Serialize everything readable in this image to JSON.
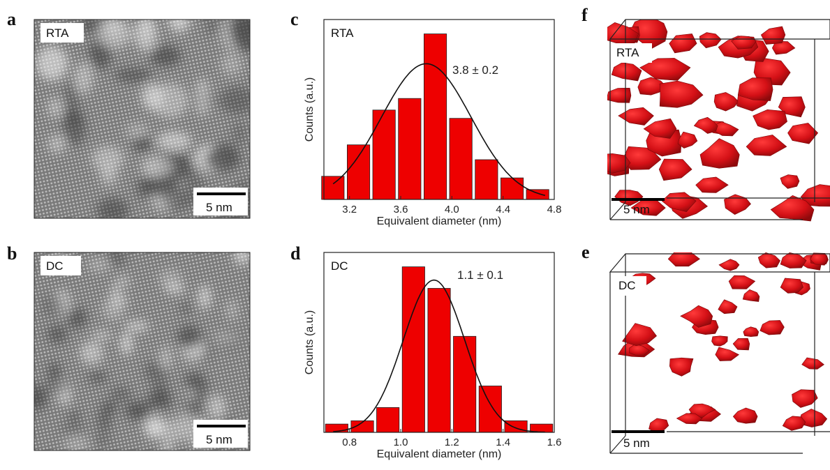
{
  "panels": {
    "a": {
      "letter": "a",
      "tag": "RTA",
      "scale": "5 nm"
    },
    "b": {
      "letter": "b",
      "tag": "DC",
      "scale": "5 nm"
    },
    "f": {
      "letter": "f",
      "tag": "RTA",
      "scale": "5 nm"
    },
    "e": {
      "letter": "e",
      "tag": "DC",
      "scale": "5 nm"
    }
  },
  "colors": {
    "bar": "#ee0000",
    "blob": "#d41016",
    "fit": "#111111"
  },
  "chart_data": [
    {
      "id": "c",
      "letter": "c",
      "type": "bar",
      "tag": "RTA",
      "annotation": "3.8 ± 0.2",
      "xlabel": "Equivalent diameter (nm)",
      "ylabel": "Counts (a.u.)",
      "xlim": [
        3.0,
        4.8
      ],
      "ylim": [
        0,
        1.0
      ],
      "xticks": [
        "3.2",
        "3.6",
        "4.0",
        "4.4",
        "4.8"
      ],
      "x": [
        3.07,
        3.27,
        3.47,
        3.67,
        3.87,
        4.07,
        4.27,
        4.47,
        4.67
      ],
      "values": [
        0.14,
        0.33,
        0.54,
        0.61,
        1.0,
        0.49,
        0.24,
        0.13,
        0.06
      ],
      "fit": {
        "mean": 3.8,
        "sigma": 0.35,
        "peak": 0.82
      }
    },
    {
      "id": "d",
      "letter": "d",
      "type": "bar",
      "tag": "DC",
      "annotation": "1.1 ± 0.1",
      "xlabel": "Equivalent diameter (nm)",
      "ylabel": "Counts (a.u.)",
      "xlim": [
        0.7,
        1.6
      ],
      "ylim": [
        0,
        1.0
      ],
      "xticks": [
        "0.8",
        "1.0",
        "1.2",
        "1.4",
        "1.6"
      ],
      "x": [
        0.75,
        0.85,
        0.95,
        1.05,
        1.15,
        1.25,
        1.35,
        1.45,
        1.55
      ],
      "values": [
        0.05,
        0.07,
        0.15,
        1.0,
        0.87,
        0.58,
        0.28,
        0.07,
        0.05
      ],
      "fit": {
        "mean": 1.13,
        "sigma": 0.12,
        "peak": 0.92
      }
    }
  ]
}
